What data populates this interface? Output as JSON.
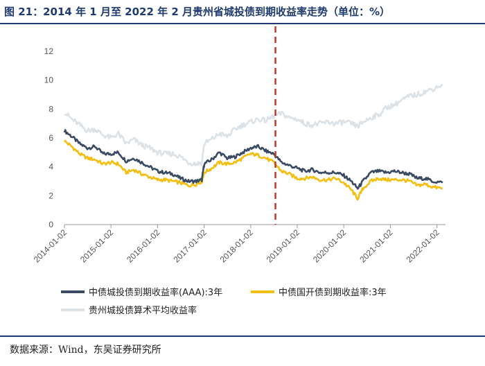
{
  "title": "图 21：2014 年 1 月至 2022 年 2 月贵州省城投债到期收益率走势（单位：%）",
  "source": "数据来源：Wind，东吴证券研究所",
  "colors": {
    "title": "#1f3a6e",
    "aaa": "#3b4a63",
    "cdb": "#f2bf12",
    "guizhou": "#dde2e7",
    "marker": "#c0392b"
  },
  "chart_data": {
    "type": "line",
    "ylim": [
      0,
      12
    ],
    "yticks": [
      "0",
      "2",
      "4",
      "6",
      "8",
      "10",
      "12"
    ],
    "xlim": [
      "2014-01-02",
      "2022-03-10"
    ],
    "xticks": [
      "2014-01-02",
      "2015-01-02",
      "2016-01-02",
      "2017-01-02",
      "2018-01-02",
      "2019-01-02",
      "2020-01-02",
      "2021-01-02",
      "2022-01-02"
    ],
    "vline_x": "2018-07-15",
    "series": [
      {
        "name": "中债城投债到期收益率(AAA):3年",
        "color_key": "aaa",
        "points": [
          [
            "2014-01-02",
            6.5
          ],
          [
            "2014-03-01",
            6.1
          ],
          [
            "2014-05-01",
            5.6
          ],
          [
            "2014-07-01",
            5.3
          ],
          [
            "2014-09-01",
            5.4
          ],
          [
            "2014-11-01",
            4.9
          ],
          [
            "2015-01-02",
            4.9
          ],
          [
            "2015-03-01",
            5.0
          ],
          [
            "2015-05-01",
            4.4
          ],
          [
            "2015-07-01",
            4.6
          ],
          [
            "2015-09-01",
            4.3
          ],
          [
            "2015-11-01",
            4.0
          ],
          [
            "2016-01-02",
            3.7
          ],
          [
            "2016-03-01",
            3.6
          ],
          [
            "2016-05-01",
            3.5
          ],
          [
            "2016-07-01",
            3.2
          ],
          [
            "2016-09-01",
            3.0
          ],
          [
            "2016-11-01",
            3.0
          ],
          [
            "2016-12-15",
            3.1
          ],
          [
            "2017-01-02",
            4.2
          ],
          [
            "2017-03-01",
            4.5
          ],
          [
            "2017-05-01",
            5.0
          ],
          [
            "2017-07-01",
            4.6
          ],
          [
            "2017-09-01",
            4.7
          ],
          [
            "2017-11-01",
            5.0
          ],
          [
            "2018-01-02",
            5.3
          ],
          [
            "2018-03-01",
            5.4
          ],
          [
            "2018-05-01",
            5.1
          ],
          [
            "2018-07-01",
            4.9
          ],
          [
            "2018-09-01",
            4.3
          ],
          [
            "2018-11-01",
            4.1
          ],
          [
            "2019-01-02",
            3.9
          ],
          [
            "2019-03-01",
            3.7
          ],
          [
            "2019-05-01",
            3.8
          ],
          [
            "2019-07-01",
            3.6
          ],
          [
            "2019-09-01",
            3.6
          ],
          [
            "2019-11-01",
            3.6
          ],
          [
            "2020-01-02",
            3.4
          ],
          [
            "2020-03-01",
            3.0
          ],
          [
            "2020-04-20",
            2.5
          ],
          [
            "2020-06-01",
            3.0
          ],
          [
            "2020-08-01",
            3.6
          ],
          [
            "2020-10-01",
            3.7
          ],
          [
            "2020-12-01",
            3.6
          ],
          [
            "2021-02-01",
            3.7
          ],
          [
            "2021-04-01",
            3.6
          ],
          [
            "2021-06-01",
            3.5
          ],
          [
            "2021-08-01",
            3.2
          ],
          [
            "2021-10-01",
            3.2
          ],
          [
            "2021-12-01",
            3.0
          ],
          [
            "2022-02-15",
            2.9
          ]
        ]
      },
      {
        "name": "中债国开债到期收益率:3年",
        "color_key": "cdb",
        "points": [
          [
            "2014-01-02",
            5.8
          ],
          [
            "2014-03-01",
            5.4
          ],
          [
            "2014-05-01",
            4.9
          ],
          [
            "2014-07-01",
            4.6
          ],
          [
            "2014-09-01",
            4.5
          ],
          [
            "2014-11-01",
            4.2
          ],
          [
            "2015-01-02",
            4.3
          ],
          [
            "2015-03-01",
            4.2
          ],
          [
            "2015-05-01",
            3.6
          ],
          [
            "2015-07-01",
            3.8
          ],
          [
            "2015-09-01",
            3.5
          ],
          [
            "2015-11-01",
            3.3
          ],
          [
            "2016-01-02",
            3.1
          ],
          [
            "2016-03-01",
            3.1
          ],
          [
            "2016-05-01",
            3.0
          ],
          [
            "2016-07-01",
            2.9
          ],
          [
            "2016-09-01",
            2.7
          ],
          [
            "2016-11-01",
            2.8
          ],
          [
            "2016-12-15",
            3.0
          ],
          [
            "2017-01-02",
            3.6
          ],
          [
            "2017-03-01",
            3.9
          ],
          [
            "2017-05-01",
            4.3
          ],
          [
            "2017-07-01",
            4.2
          ],
          [
            "2017-09-01",
            4.3
          ],
          [
            "2017-11-01",
            4.6
          ],
          [
            "2018-01-02",
            4.9
          ],
          [
            "2018-03-01",
            4.8
          ],
          [
            "2018-05-01",
            4.6
          ],
          [
            "2018-07-01",
            4.3
          ],
          [
            "2018-09-01",
            3.7
          ],
          [
            "2018-11-01",
            3.5
          ],
          [
            "2019-01-02",
            3.2
          ],
          [
            "2019-03-01",
            3.2
          ],
          [
            "2019-05-01",
            3.3
          ],
          [
            "2019-07-01",
            3.1
          ],
          [
            "2019-09-01",
            3.1
          ],
          [
            "2019-11-01",
            3.2
          ],
          [
            "2020-01-02",
            2.9
          ],
          [
            "2020-03-01",
            2.4
          ],
          [
            "2020-04-20",
            1.8
          ],
          [
            "2020-06-01",
            2.5
          ],
          [
            "2020-08-01",
            3.0
          ],
          [
            "2020-10-01",
            3.2
          ],
          [
            "2020-12-01",
            3.1
          ],
          [
            "2021-02-01",
            3.1
          ],
          [
            "2021-04-01",
            3.1
          ],
          [
            "2021-06-01",
            3.0
          ],
          [
            "2021-08-01",
            2.7
          ],
          [
            "2021-10-01",
            2.8
          ],
          [
            "2021-12-01",
            2.6
          ],
          [
            "2022-02-15",
            2.5
          ]
        ]
      },
      {
        "name": "贵州城投债算术平均收益率",
        "color_key": "guizhou",
        "points": [
          [
            "2014-01-02",
            7.8
          ],
          [
            "2014-03-01",
            7.3
          ],
          [
            "2014-05-01",
            6.9
          ],
          [
            "2014-07-01",
            6.5
          ],
          [
            "2014-09-01",
            6.6
          ],
          [
            "2014-11-01",
            6.2
          ],
          [
            "2015-01-02",
            6.0
          ],
          [
            "2015-03-01",
            6.3
          ],
          [
            "2015-05-01",
            5.6
          ],
          [
            "2015-07-01",
            5.9
          ],
          [
            "2015-09-01",
            5.5
          ],
          [
            "2015-11-01",
            5.3
          ],
          [
            "2016-01-02",
            5.0
          ],
          [
            "2016-03-01",
            4.9
          ],
          [
            "2016-05-01",
            4.9
          ],
          [
            "2016-07-01",
            4.7
          ],
          [
            "2016-09-01",
            4.3
          ],
          [
            "2016-11-01",
            4.2
          ],
          [
            "2016-12-15",
            4.3
          ],
          [
            "2017-01-02",
            5.6
          ],
          [
            "2017-03-01",
            5.9
          ],
          [
            "2017-05-01",
            6.3
          ],
          [
            "2017-07-01",
            6.1
          ],
          [
            "2017-09-01",
            6.6
          ],
          [
            "2017-11-01",
            6.9
          ],
          [
            "2018-01-02",
            7.1
          ],
          [
            "2018-03-01",
            7.3
          ],
          [
            "2018-05-01",
            7.2
          ],
          [
            "2018-07-01",
            7.5
          ],
          [
            "2018-09-01",
            7.7
          ],
          [
            "2018-11-01",
            7.4
          ],
          [
            "2019-01-02",
            7.3
          ],
          [
            "2019-03-01",
            7.0
          ],
          [
            "2019-05-01",
            6.9
          ],
          [
            "2019-07-01",
            7.0
          ],
          [
            "2019-09-01",
            7.1
          ],
          [
            "2019-11-01",
            7.0
          ],
          [
            "2020-01-02",
            7.1
          ],
          [
            "2020-03-01",
            7.0
          ],
          [
            "2020-04-20",
            6.8
          ],
          [
            "2020-06-01",
            7.1
          ],
          [
            "2020-08-01",
            7.4
          ],
          [
            "2020-10-01",
            7.6
          ],
          [
            "2020-12-01",
            8.1
          ],
          [
            "2021-02-01",
            8.3
          ],
          [
            "2021-04-01",
            8.6
          ],
          [
            "2021-06-01",
            8.9
          ],
          [
            "2021-08-01",
            9.0
          ],
          [
            "2021-10-01",
            9.2
          ],
          [
            "2021-12-01",
            9.4
          ],
          [
            "2022-02-15",
            9.7
          ]
        ]
      }
    ],
    "legend_position": "bottom"
  }
}
